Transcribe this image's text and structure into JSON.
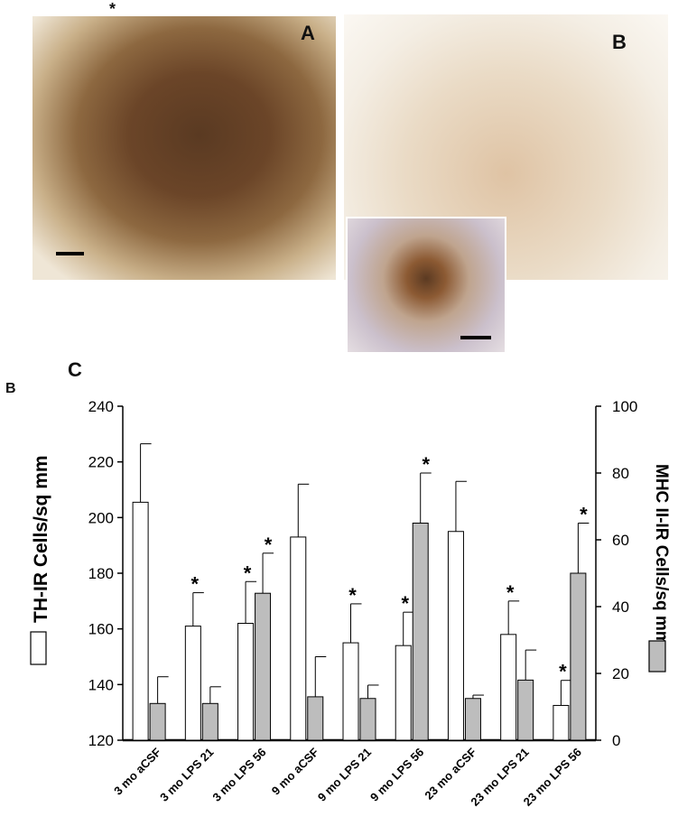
{
  "figure": {
    "panel_a": {
      "letter": "A",
      "star": "*"
    },
    "panel_b": {
      "letter": "B"
    },
    "panel_c": {
      "letter": "C"
    },
    "corner_label": "B"
  },
  "chart_data": {
    "type": "bar",
    "categories": [
      "3 mo aCSF",
      "3 mo LPS 21",
      "3 mo LPS 56",
      "9 mo aCSF",
      "9 mo LPS 21",
      "9 mo LPS 56",
      "23 mo aCSF",
      "23 mo LPS 21",
      "23 mo LPS 56"
    ],
    "ylabel": "TH-IR Cells/sq mm",
    "y2label": "MHC II-IR Cells/sq mm",
    "ylim": [
      120,
      240
    ],
    "y2lim": [
      0,
      100
    ],
    "yticks": [
      120,
      140,
      160,
      180,
      200,
      220,
      240
    ],
    "y2ticks": [
      0,
      20,
      40,
      60,
      80,
      100
    ],
    "series": [
      {
        "name": "TH-IR Cells/sq mm",
        "axis": "left",
        "color": "#ffffff",
        "values": [
          205.5,
          161,
          162,
          193,
          155,
          154,
          195,
          158,
          132.5
        ],
        "errors": [
          21,
          12,
          15,
          19,
          14,
          12,
          18,
          12,
          9
        ],
        "significant": [
          false,
          true,
          true,
          false,
          true,
          true,
          false,
          true,
          true
        ]
      },
      {
        "name": "MHC II-IR Cells/sq mm",
        "axis": "right",
        "color": "#bdbdbd",
        "values": [
          11,
          11,
          44,
          13,
          12.5,
          65,
          12.5,
          18,
          50
        ],
        "errors": [
          8,
          5,
          12,
          12,
          4,
          15,
          1,
          9,
          15
        ],
        "significant": [
          false,
          false,
          true,
          false,
          false,
          true,
          false,
          false,
          true
        ]
      }
    ],
    "significance_marker": "*",
    "legend": "axis labels with swatches",
    "grid": false
  }
}
